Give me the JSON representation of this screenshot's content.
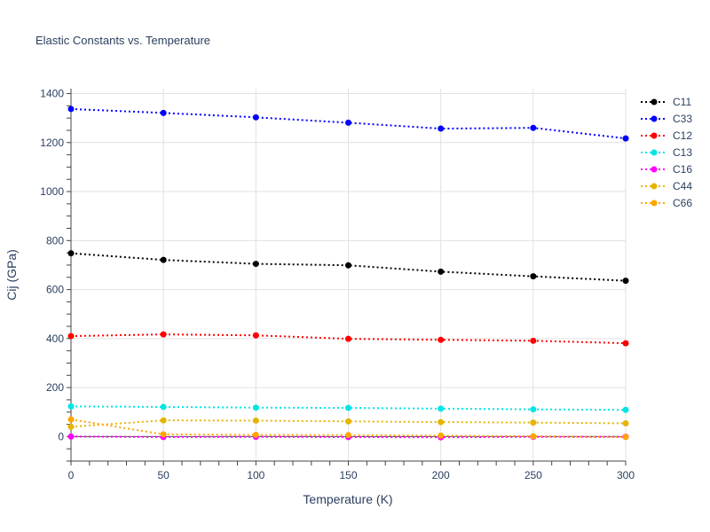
{
  "chart_data": {
    "type": "line",
    "title": "Elastic Constants vs. Temperature",
    "xlabel": "Temperature (K)",
    "ylabel": "Cij (GPa)",
    "xlim": [
      0,
      300
    ],
    "ylim": [
      -100,
      1420
    ],
    "xticks": [
      0,
      50,
      100,
      150,
      200,
      250,
      300
    ],
    "yticks": [
      0,
      200,
      400,
      600,
      800,
      1000,
      1200,
      1400
    ],
    "grid": true,
    "legend_position": "right",
    "x": [
      0,
      50,
      100,
      150,
      200,
      250,
      300
    ],
    "series": [
      {
        "name": "C11",
        "color": "#000000",
        "values": [
          748,
          721,
          705,
          699,
          673,
          654,
          636
        ]
      },
      {
        "name": "C33",
        "color": "#0000ff",
        "values": [
          1337,
          1321,
          1303,
          1281,
          1257,
          1260,
          1217
        ]
      },
      {
        "name": "C12",
        "color": "#ff0000",
        "values": [
          410,
          417,
          413,
          399,
          395,
          391,
          381
        ]
      },
      {
        "name": "C13",
        "color": "#00e5e5",
        "values": [
          123,
          121,
          118,
          117,
          114,
          111,
          109
        ]
      },
      {
        "name": "C16",
        "color": "#ff00ff",
        "values": [
          0,
          -2,
          -1,
          -2,
          -3,
          -1,
          -1
        ]
      },
      {
        "name": "C44",
        "color": "#e6b400",
        "values": [
          40,
          66,
          65,
          62,
          59,
          57,
          54
        ]
      },
      {
        "name": "C66",
        "color": "#ffa500",
        "values": [
          70,
          9,
          7,
          6,
          4,
          1,
          -2
        ]
      }
    ]
  }
}
